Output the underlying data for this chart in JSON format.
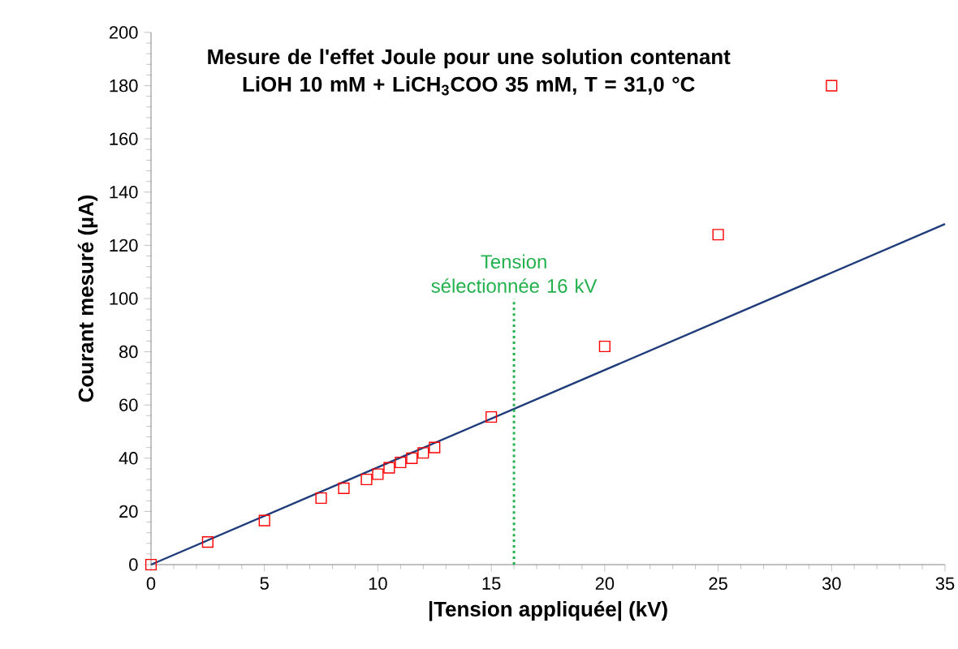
{
  "chart_data": {
    "type": "scatter",
    "title": "Mesure de l'effet Joule pour une solution contenant LiOH 10 mM + LiCH$_{3}$COO 35 mM, T = 31,0 °C",
    "xlabel": "|Tension appliquée| (kV)",
    "ylabel": "Courant mesuré (µA)",
    "xlim": [
      0,
      35
    ],
    "ylim": [
      0,
      200
    ],
    "xticks": [
      0,
      5,
      10,
      15,
      20,
      25,
      30,
      35
    ],
    "yticks": [
      0,
      20,
      40,
      60,
      80,
      100,
      120,
      140,
      160,
      180,
      200
    ],
    "grid": false,
    "series": [
      {
        "marker": "square",
        "color": "#ff0000",
        "x": [
          0,
          2.5,
          5,
          7.5,
          8.5,
          9.5,
          10,
          10.5,
          11,
          11.5,
          12,
          12.5,
          15,
          20,
          25,
          30
        ],
        "values": [
          0,
          8.5,
          16.6,
          25,
          28.7,
          32,
          34,
          36.4,
          38.4,
          40,
          42,
          44,
          55.5,
          82,
          124,
          180
        ]
      },
      {
        "type": "line",
        "color": "#1f3c7a",
        "x": [
          0,
          35
        ],
        "values": [
          0,
          128
        ]
      }
    ],
    "ref_lines": [
      {
        "axis": "x",
        "value": 16,
        "label": "Tension sélectionnée 16 kV",
        "color": "#22b14c",
        "line_style": "dotted"
      }
    ]
  }
}
